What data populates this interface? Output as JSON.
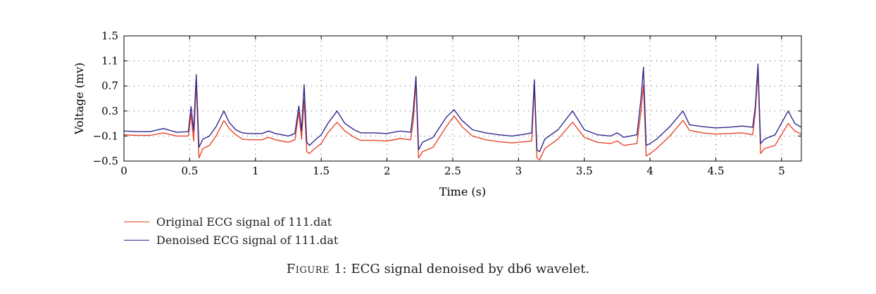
{
  "chart_data": {
    "type": "line",
    "title": "",
    "xlabel": "Time (s)",
    "ylabel": "Voltage (mv)",
    "xlim": [
      0,
      5.15
    ],
    "ylim": [
      -0.5,
      1.5
    ],
    "xticks": [
      0,
      0.5,
      1,
      1.5,
      2,
      2.5,
      3,
      3.5,
      4,
      4.5,
      5
    ],
    "xtick_labels": [
      "0",
      "0.5",
      "1",
      "1.5",
      "2",
      "2.5",
      "3",
      "3.5",
      "4",
      "4.5",
      "5"
    ],
    "yticks": [
      -0.5,
      -0.1,
      0.3,
      0.7,
      1.1,
      1.5
    ],
    "ytick_labels": [
      "−0.5",
      "−0.1",
      "0.3",
      "0.7",
      "1.1",
      "1.5"
    ],
    "grid": true,
    "series": [
      {
        "name": "Original ECG signal of 111.dat",
        "color": "#e8472d",
        "x": [
          0,
          0.1,
          0.2,
          0.3,
          0.4,
          0.49,
          0.51,
          0.53,
          0.55,
          0.57,
          0.6,
          0.65,
          0.7,
          0.76,
          0.8,
          0.85,
          0.9,
          0.95,
          1.0,
          1.05,
          1.1,
          1.15,
          1.2,
          1.25,
          1.3,
          1.33,
          1.35,
          1.37,
          1.39,
          1.41,
          1.45,
          1.5,
          1.55,
          1.62,
          1.68,
          1.75,
          1.8,
          1.9,
          2.0,
          2.1,
          2.18,
          2.2,
          2.22,
          2.24,
          2.27,
          2.35,
          2.45,
          2.51,
          2.57,
          2.65,
          2.75,
          2.85,
          2.95,
          3.05,
          3.1,
          3.12,
          3.14,
          3.16,
          3.2,
          3.3,
          3.41,
          3.5,
          3.6,
          3.7,
          3.75,
          3.8,
          3.9,
          3.93,
          3.95,
          3.97,
          4.0,
          4.05,
          4.15,
          4.25,
          4.3,
          4.4,
          4.5,
          4.6,
          4.7,
          4.78,
          4.8,
          4.82,
          4.84,
          4.87,
          4.95,
          5.05,
          5.1,
          5.15
        ],
        "values": [
          -0.08,
          -0.09,
          -0.09,
          -0.05,
          -0.1,
          -0.1,
          0.25,
          -0.18,
          0.75,
          -0.45,
          -0.3,
          -0.25,
          -0.1,
          0.15,
          0.02,
          -0.08,
          -0.15,
          -0.16,
          -0.16,
          -0.16,
          -0.12,
          -0.16,
          -0.18,
          -0.2,
          -0.16,
          0.28,
          -0.15,
          0.48,
          -0.35,
          -0.38,
          -0.3,
          -0.22,
          -0.05,
          0.12,
          -0.02,
          -0.12,
          -0.17,
          -0.17,
          -0.18,
          -0.14,
          -0.16,
          0.15,
          0.75,
          -0.45,
          -0.35,
          -0.28,
          0.05,
          0.22,
          0.05,
          -0.1,
          -0.16,
          -0.19,
          -0.21,
          -0.19,
          -0.18,
          0.7,
          -0.45,
          -0.48,
          -0.3,
          -0.15,
          0.12,
          -0.12,
          -0.2,
          -0.22,
          -0.18,
          -0.25,
          -0.22,
          0.28,
          0.72,
          -0.42,
          -0.38,
          -0.3,
          -0.1,
          0.15,
          -0.01,
          -0.05,
          -0.07,
          -0.06,
          -0.05,
          -0.08,
          0.28,
          0.95,
          -0.38,
          -0.3,
          -0.25,
          0.1,
          -0.02,
          -0.07
        ]
      },
      {
        "name": "Denoised ECG signal of 111.dat",
        "color": "#2e2a8c",
        "x": [
          0,
          0.1,
          0.2,
          0.3,
          0.4,
          0.49,
          0.51,
          0.53,
          0.55,
          0.57,
          0.6,
          0.65,
          0.7,
          0.76,
          0.8,
          0.85,
          0.9,
          0.95,
          1.0,
          1.05,
          1.1,
          1.15,
          1.2,
          1.25,
          1.3,
          1.33,
          1.35,
          1.37,
          1.39,
          1.41,
          1.45,
          1.5,
          1.55,
          1.62,
          1.68,
          1.75,
          1.8,
          1.9,
          2.0,
          2.1,
          2.18,
          2.2,
          2.22,
          2.24,
          2.27,
          2.35,
          2.45,
          2.51,
          2.57,
          2.65,
          2.75,
          2.85,
          2.95,
          3.05,
          3.1,
          3.12,
          3.14,
          3.16,
          3.2,
          3.3,
          3.41,
          3.5,
          3.6,
          3.7,
          3.75,
          3.8,
          3.9,
          3.93,
          3.95,
          3.97,
          4.0,
          4.05,
          4.15,
          4.25,
          4.3,
          4.4,
          4.5,
          4.6,
          4.7,
          4.78,
          4.8,
          4.82,
          4.84,
          4.87,
          4.95,
          5.05,
          5.1,
          5.15
        ],
        "values": [
          -0.02,
          -0.03,
          -0.03,
          0.02,
          -0.04,
          -0.03,
          0.37,
          -0.02,
          0.88,
          -0.28,
          -0.15,
          -0.1,
          0.05,
          0.3,
          0.12,
          0.0,
          -0.05,
          -0.06,
          -0.06,
          -0.06,
          -0.02,
          -0.06,
          -0.08,
          -0.1,
          -0.06,
          0.38,
          -0.02,
          0.72,
          -0.2,
          -0.25,
          -0.17,
          -0.08,
          0.1,
          0.3,
          0.1,
          0.0,
          -0.05,
          -0.05,
          -0.06,
          -0.02,
          -0.04,
          0.32,
          0.85,
          -0.32,
          -0.2,
          -0.12,
          0.2,
          0.32,
          0.15,
          0.0,
          -0.05,
          -0.08,
          -0.1,
          -0.07,
          -0.05,
          0.8,
          -0.32,
          -0.35,
          -0.15,
          0.0,
          0.3,
          0.0,
          -0.08,
          -0.1,
          -0.05,
          -0.12,
          -0.08,
          0.48,
          1.0,
          -0.25,
          -0.22,
          -0.15,
          0.05,
          0.3,
          0.08,
          0.05,
          0.03,
          0.04,
          0.06,
          0.04,
          0.37,
          1.05,
          -0.22,
          -0.15,
          -0.08,
          0.3,
          0.1,
          0.04
        ]
      }
    ]
  },
  "legend": {
    "items": [
      {
        "label": "Original ECG signal of 111.dat",
        "color": "#e8472d"
      },
      {
        "label": "Denoised ECG signal of 111.dat",
        "color": "#2e2a8c"
      }
    ]
  },
  "caption": {
    "prefix": "Figure 1:",
    "text": "ECG signal denoised by db6 wavelet."
  }
}
